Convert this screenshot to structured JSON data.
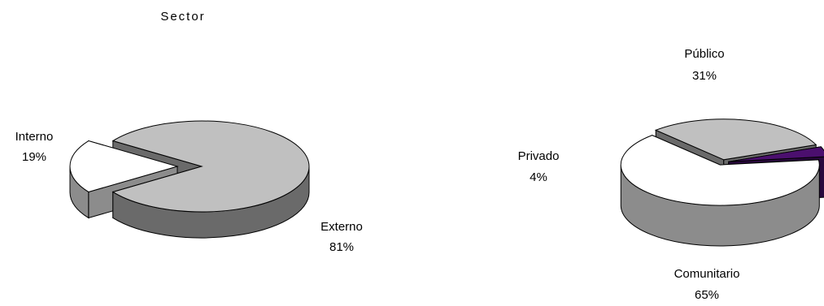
{
  "chart_data": [
    {
      "type": "pie",
      "title": "Sector",
      "categories": [
        "Interno",
        "Externo"
      ],
      "values": [
        19,
        81
      ],
      "labels": [
        "19%",
        "81%"
      ],
      "colors": [
        "#ffffff",
        "#c0c0c0"
      ],
      "exploded": "Interno",
      "style": "3d"
    },
    {
      "type": "pie",
      "title": "",
      "categories": [
        "Público",
        "Privado",
        "Comunitario"
      ],
      "values": [
        31,
        4,
        65
      ],
      "labels": [
        "31%",
        "4%",
        "65%"
      ],
      "colors": [
        "#c0c0c0",
        "#4b0f6e",
        "#ffffff"
      ],
      "exploded": "all",
      "style": "3d"
    }
  ]
}
